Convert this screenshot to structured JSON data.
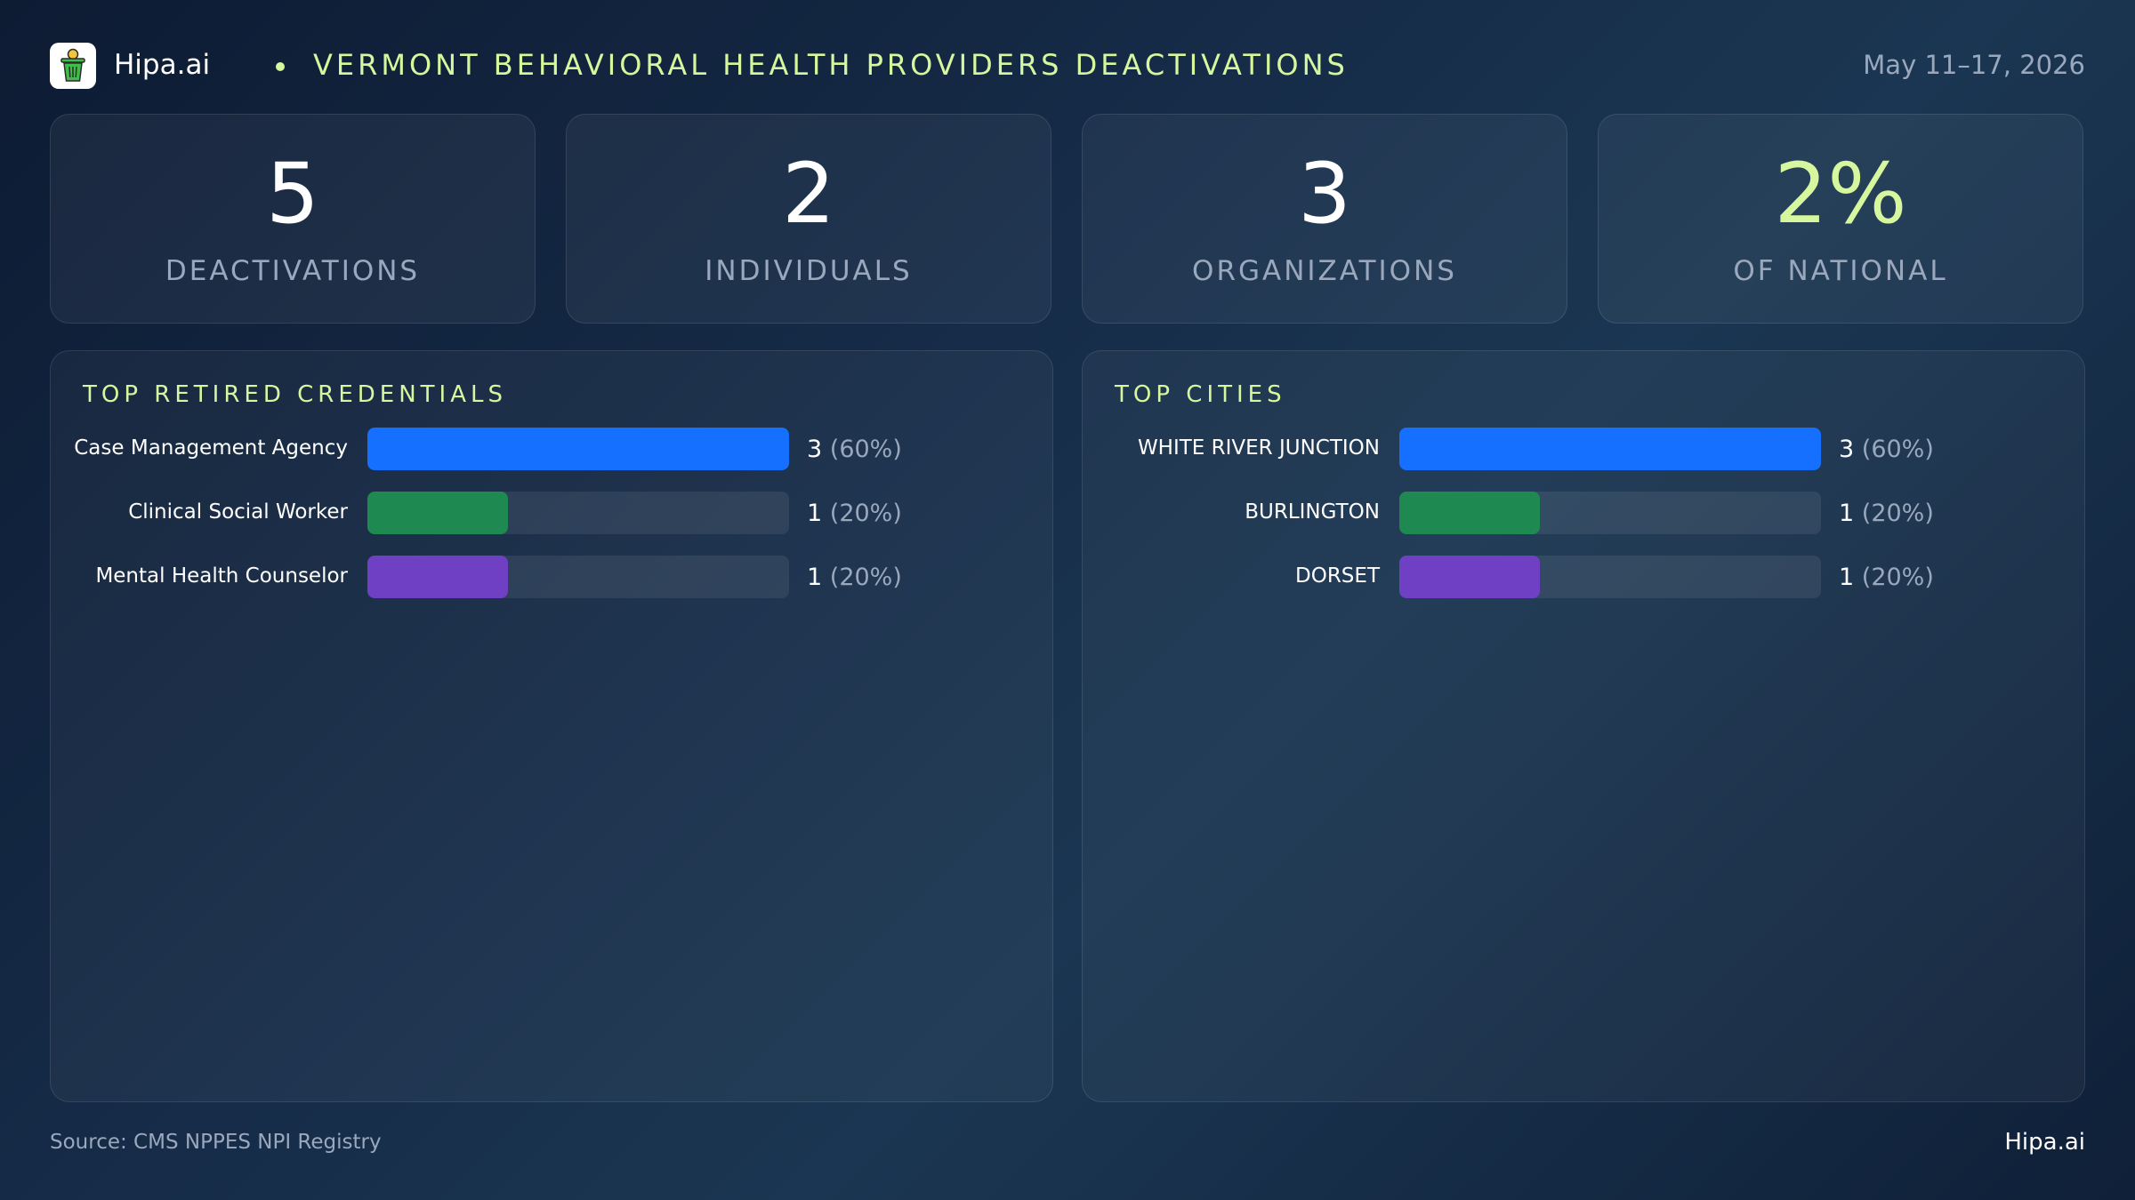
{
  "header": {
    "brand": "Hipa.ai",
    "title": "VERMONT BEHAVIORAL HEALTH PROVIDERS DEACTIVATIONS",
    "date": "May 11–17, 2026",
    "logo_icon": "trash-can-icon"
  },
  "stats": [
    {
      "value": "5",
      "label": "DEACTIVATIONS"
    },
    {
      "value": "2",
      "label": "INDIVIDUALS"
    },
    {
      "value": "3",
      "label": "ORGANIZATIONS"
    },
    {
      "value": "2%",
      "label": "OF NATIONAL"
    }
  ],
  "colors": {
    "accent": "#d6f79d",
    "blue": "#1570ff",
    "green": "#1e8a52",
    "purple": "#6f3fc4"
  },
  "chart_data": [
    {
      "type": "bar",
      "title": "TOP RETIRED CREDENTIALS",
      "categories": [
        "Case Management Agency",
        "Clinical Social Worker",
        "Mental Health Counselor"
      ],
      "values": [
        3,
        1,
        1
      ],
      "percents": [
        "(60%)",
        "(20%)",
        "(20%)"
      ],
      "colors": [
        "#1570ff",
        "#1e8a52",
        "#6f3fc4"
      ],
      "max": 3
    },
    {
      "type": "bar",
      "title": "TOP CITIES",
      "categories": [
        "WHITE RIVER JUNCTION",
        "BURLINGTON",
        "DORSET"
      ],
      "values": [
        3,
        1,
        1
      ],
      "percents": [
        "(60%)",
        "(20%)",
        "(20%)"
      ],
      "colors": [
        "#1570ff",
        "#1e8a52",
        "#6f3fc4"
      ],
      "max": 3
    }
  ],
  "footer": {
    "source": "Source: CMS NPPES NPI Registry",
    "brand": "Hipa.ai"
  }
}
